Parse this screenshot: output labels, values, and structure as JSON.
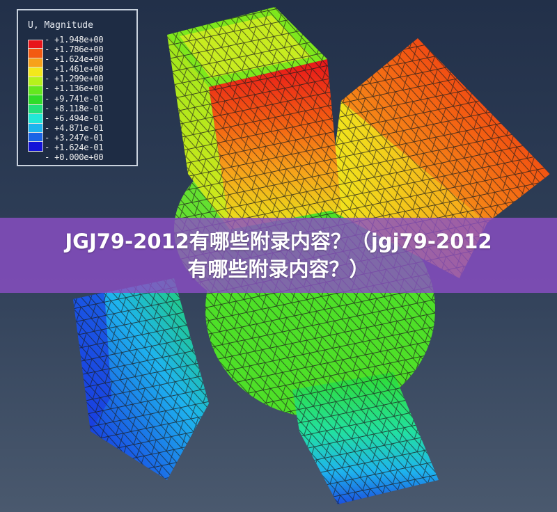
{
  "legend": {
    "title": "U, Magnitude",
    "values": [
      "+1.948e+00",
      "+1.786e+00",
      "+1.624e+00",
      "+1.461e+00",
      "+1.299e+00",
      "+1.136e+00",
      "+9.741e-01",
      "+8.118e-01",
      "+6.494e-01",
      "+4.871e-01",
      "+3.247e-01",
      "+1.624e-01",
      "+0.000e+00"
    ],
    "colors": [
      "#e8141a",
      "#f35a12",
      "#f7a11a",
      "#f3e81c",
      "#b6f21c",
      "#64e81e",
      "#2fdc28",
      "#22e07a",
      "#22e8d8",
      "#1eb4ee",
      "#1a64e6",
      "#1414d8"
    ]
  },
  "banner": {
    "line1": "JGJ79-2012有哪些附录内容？（jgj79-2012",
    "line2": "有哪些附录内容？）"
  }
}
